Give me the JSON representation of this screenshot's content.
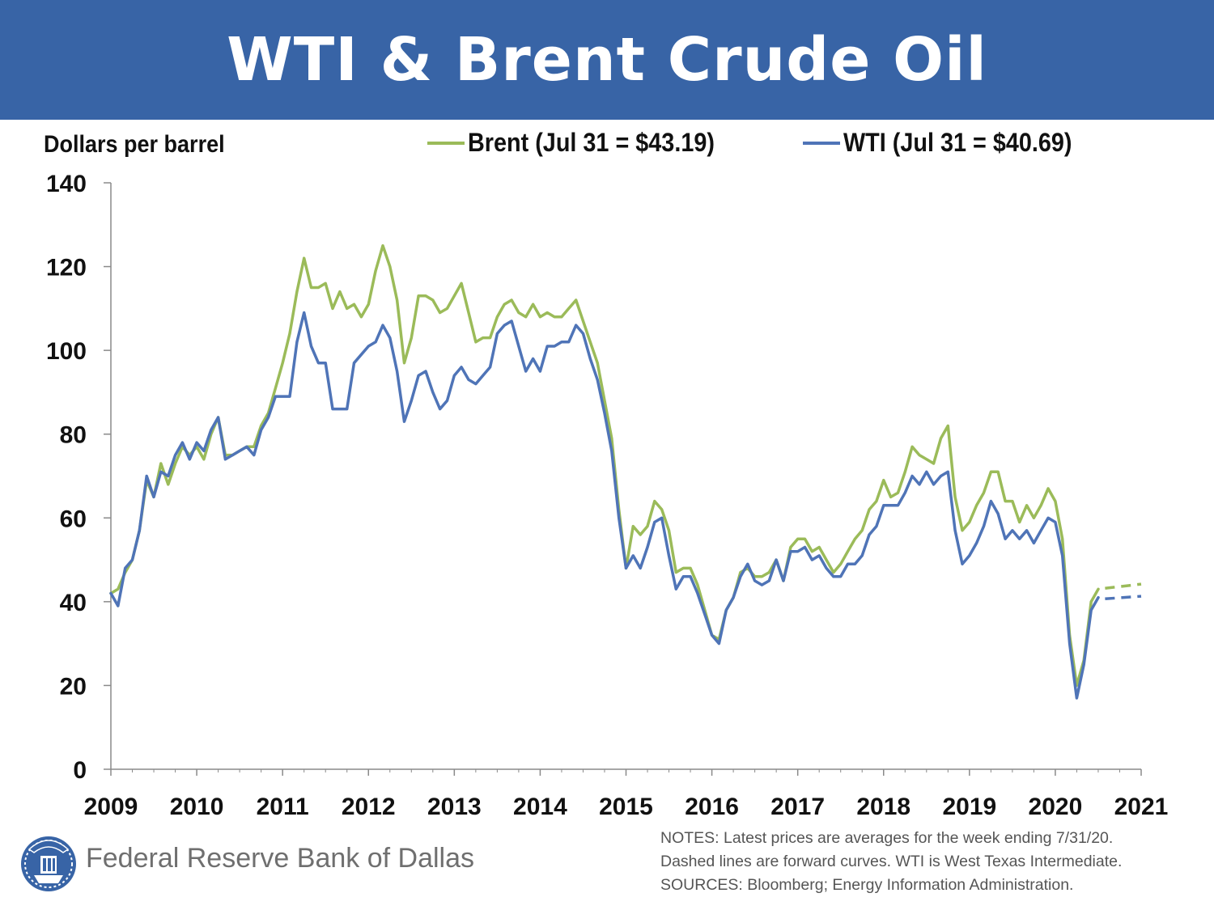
{
  "header": {
    "title": "WTI & Brent Crude Oil"
  },
  "footer": {
    "org_name": "Federal Reserve Bank of Dallas",
    "logo_icon": "federal-reserve-seal-icon",
    "notes": [
      "NOTES: Latest prices are averages for the week ending 7/31/20.",
      "Dashed lines are forward curves. WTI is West Texas Intermediate.",
      "SOURCES: Bloomberg; Energy Information Administration."
    ]
  },
  "colors": {
    "banner": "#3864a6",
    "brent": "#9bbb59",
    "wti": "#4f74b7"
  },
  "chart_data": {
    "type": "line",
    "ylabel": "Dollars per barrel",
    "xlabel": "",
    "ylim": [
      0,
      140
    ],
    "xlim": [
      2009,
      2021
    ],
    "yticks": [
      "0",
      "20",
      "40",
      "60",
      "80",
      "100",
      "120",
      "140"
    ],
    "xticks": [
      "2009",
      "2010",
      "2011",
      "2012",
      "2013",
      "2014",
      "2015",
      "2016",
      "2017",
      "2018",
      "2019",
      "2020",
      "2021"
    ],
    "grid": false,
    "legend_position": "top",
    "x_note": "x values are decimal years",
    "series": [
      {
        "name": "Brent (Jul 31 = $43.19)",
        "color": "#9bbb59",
        "x": [
          2009.0,
          2009.083,
          2009.167,
          2009.25,
          2009.333,
          2009.417,
          2009.5,
          2009.583,
          2009.667,
          2009.75,
          2009.833,
          2009.917,
          2010.0,
          2010.083,
          2010.167,
          2010.25,
          2010.333,
          2010.417,
          2010.5,
          2010.583,
          2010.667,
          2010.75,
          2010.833,
          2010.917,
          2011.0,
          2011.083,
          2011.167,
          2011.25,
          2011.333,
          2011.417,
          2011.5,
          2011.583,
          2011.667,
          2011.75,
          2011.833,
          2011.917,
          2012.0,
          2012.083,
          2012.167,
          2012.25,
          2012.333,
          2012.417,
          2012.5,
          2012.583,
          2012.667,
          2012.75,
          2012.833,
          2012.917,
          2013.0,
          2013.083,
          2013.167,
          2013.25,
          2013.333,
          2013.417,
          2013.5,
          2013.583,
          2013.667,
          2013.75,
          2013.833,
          2013.917,
          2014.0,
          2014.083,
          2014.167,
          2014.25,
          2014.333,
          2014.417,
          2014.5,
          2014.583,
          2014.667,
          2014.75,
          2014.833,
          2014.917,
          2015.0,
          2015.083,
          2015.167,
          2015.25,
          2015.333,
          2015.417,
          2015.5,
          2015.583,
          2015.667,
          2015.75,
          2015.833,
          2015.917,
          2016.0,
          2016.083,
          2016.167,
          2016.25,
          2016.333,
          2016.417,
          2016.5,
          2016.583,
          2016.667,
          2016.75,
          2016.833,
          2016.917,
          2017.0,
          2017.083,
          2017.167,
          2017.25,
          2017.333,
          2017.417,
          2017.5,
          2017.583,
          2017.667,
          2017.75,
          2017.833,
          2017.917,
          2018.0,
          2018.083,
          2018.167,
          2018.25,
          2018.333,
          2018.417,
          2018.5,
          2018.583,
          2018.667,
          2018.75,
          2018.833,
          2018.917,
          2019.0,
          2019.083,
          2019.167,
          2019.25,
          2019.333,
          2019.417,
          2019.5,
          2019.583,
          2019.667,
          2019.75,
          2019.833,
          2019.917,
          2020.0,
          2020.083,
          2020.167,
          2020.25,
          2020.333,
          2020.417,
          2020.5
        ],
        "values": [
          42,
          43,
          47,
          50,
          57,
          69,
          65,
          73,
          68,
          73,
          77,
          75,
          77,
          74,
          80,
          84,
          75,
          75,
          76,
          77,
          77,
          82,
          85,
          91,
          97,
          104,
          114,
          122,
          115,
          115,
          116,
          110,
          114,
          110,
          111,
          108,
          111,
          119,
          125,
          120,
          112,
          97,
          103,
          113,
          113,
          112,
          109,
          110,
          113,
          116,
          109,
          102,
          103,
          103,
          108,
          111,
          112,
          109,
          108,
          111,
          108,
          109,
          108,
          108,
          110,
          112,
          107,
          102,
          97,
          88,
          79,
          62,
          48,
          58,
          56,
          58,
          64,
          62,
          57,
          47,
          48,
          48,
          44,
          38,
          32,
          31,
          38,
          41,
          47,
          48,
          46,
          46,
          47,
          50,
          45,
          53,
          55,
          55,
          52,
          53,
          50,
          47,
          49,
          52,
          55,
          57,
          62,
          64,
          69,
          65,
          66,
          71,
          77,
          75,
          74,
          73,
          79,
          82,
          65,
          57,
          59,
          63,
          66,
          71,
          71,
          64,
          64,
          59,
          63,
          60,
          63,
          67,
          64,
          55,
          32,
          20,
          26,
          40,
          43
        ]
      },
      {
        "name": "WTI (Jul 31 = $40.69)",
        "color": "#4f74b7",
        "x": [
          2009.0,
          2009.083,
          2009.167,
          2009.25,
          2009.333,
          2009.417,
          2009.5,
          2009.583,
          2009.667,
          2009.75,
          2009.833,
          2009.917,
          2010.0,
          2010.083,
          2010.167,
          2010.25,
          2010.333,
          2010.417,
          2010.5,
          2010.583,
          2010.667,
          2010.75,
          2010.833,
          2010.917,
          2011.0,
          2011.083,
          2011.167,
          2011.25,
          2011.333,
          2011.417,
          2011.5,
          2011.583,
          2011.667,
          2011.75,
          2011.833,
          2011.917,
          2012.0,
          2012.083,
          2012.167,
          2012.25,
          2012.333,
          2012.417,
          2012.5,
          2012.583,
          2012.667,
          2012.75,
          2012.833,
          2012.917,
          2013.0,
          2013.083,
          2013.167,
          2013.25,
          2013.333,
          2013.417,
          2013.5,
          2013.583,
          2013.667,
          2013.75,
          2013.833,
          2013.917,
          2014.0,
          2014.083,
          2014.167,
          2014.25,
          2014.333,
          2014.417,
          2014.5,
          2014.583,
          2014.667,
          2014.75,
          2014.833,
          2014.917,
          2015.0,
          2015.083,
          2015.167,
          2015.25,
          2015.333,
          2015.417,
          2015.5,
          2015.583,
          2015.667,
          2015.75,
          2015.833,
          2015.917,
          2016.0,
          2016.083,
          2016.167,
          2016.25,
          2016.333,
          2016.417,
          2016.5,
          2016.583,
          2016.667,
          2016.75,
          2016.833,
          2016.917,
          2017.0,
          2017.083,
          2017.167,
          2017.25,
          2017.333,
          2017.417,
          2017.5,
          2017.583,
          2017.667,
          2017.75,
          2017.833,
          2017.917,
          2018.0,
          2018.083,
          2018.167,
          2018.25,
          2018.333,
          2018.417,
          2018.5,
          2018.583,
          2018.667,
          2018.75,
          2018.833,
          2018.917,
          2019.0,
          2019.083,
          2019.167,
          2019.25,
          2019.333,
          2019.417,
          2019.5,
          2019.583,
          2019.667,
          2019.75,
          2019.833,
          2019.917,
          2020.0,
          2020.083,
          2020.167,
          2020.25,
          2020.333,
          2020.417,
          2020.5
        ],
        "values": [
          42,
          39,
          48,
          50,
          57,
          70,
          65,
          71,
          70,
          75,
          78,
          74,
          78,
          76,
          81,
          84,
          74,
          75,
          76,
          77,
          75,
          81,
          84,
          89,
          89,
          89,
          102,
          109,
          101,
          97,
          97,
          86,
          86,
          86,
          97,
          99,
          101,
          102,
          106,
          103,
          95,
          83,
          88,
          94,
          95,
          90,
          86,
          88,
          94,
          96,
          93,
          92,
          94,
          96,
          104,
          106,
          107,
          101,
          95,
          98,
          95,
          101,
          101,
          102,
          102,
          106,
          104,
          98,
          93,
          85,
          76,
          60,
          48,
          51,
          48,
          53,
          59,
          60,
          51,
          43,
          46,
          46,
          42,
          37,
          32,
          30,
          38,
          41,
          46,
          49,
          45,
          44,
          45,
          50,
          45,
          52,
          52,
          53,
          50,
          51,
          48,
          46,
          46,
          49,
          49,
          51,
          56,
          58,
          63,
          63,
          63,
          66,
          70,
          68,
          71,
          68,
          70,
          71,
          57,
          49,
          51,
          54,
          58,
          64,
          61,
          55,
          57,
          55,
          57,
          54,
          57,
          60,
          59,
          51,
          30,
          17,
          25,
          38,
          41
        ]
      },
      {
        "name": "Brent forward curve",
        "color": "#9bbb59",
        "dashed": true,
        "x": [
          2020.58,
          2021.0
        ],
        "values": [
          43.19,
          44.2
        ]
      },
      {
        "name": "WTI forward curve",
        "color": "#4f74b7",
        "dashed": true,
        "x": [
          2020.58,
          2021.0
        ],
        "values": [
          40.69,
          41.3
        ]
      }
    ]
  }
}
